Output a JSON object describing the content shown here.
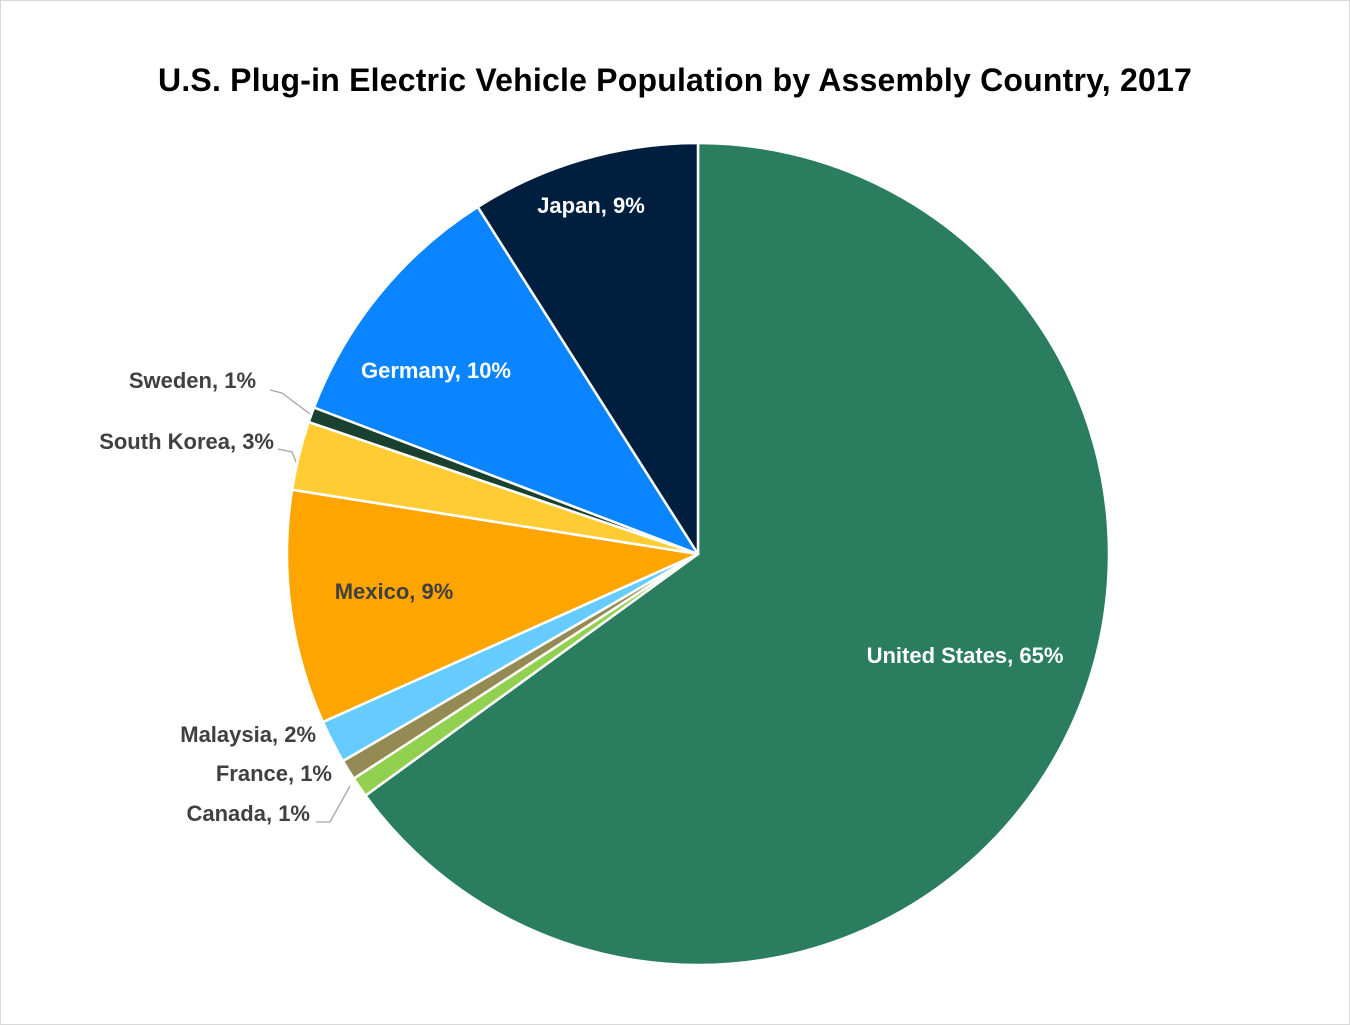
{
  "chart_data": {
    "type": "pie",
    "title": "U.S. Plug-in Electric Vehicle Population by Assembly Country, 2017",
    "slices": [
      {
        "label": "United States, 65%",
        "value": 65,
        "color": "#2a7d5f"
      },
      {
        "label": "Canada, 1%",
        "value": 0.8,
        "color": "#92d050"
      },
      {
        "label": "France, 1%",
        "value": 0.8,
        "color": "#948a54"
      },
      {
        "label": "Malaysia, 2%",
        "value": 1.7,
        "color": "#66ccff"
      },
      {
        "label": "Mexico, 9%",
        "value": 9.2,
        "color": "#ffa500"
      },
      {
        "label": "South Korea, 3%",
        "value": 2.7,
        "color": "#ffcc33"
      },
      {
        "label": "Sweden, 1%",
        "value": 0.6,
        "color": "#1a4030"
      },
      {
        "label": "Germany, 10%",
        "value": 10.2,
        "color": "#0a84ff"
      },
      {
        "label": "Japan, 9%",
        "value": 9.0,
        "color": "#001f3f"
      }
    ],
    "label_colors": {
      "inside_light": "#ffffff",
      "inside_dark": "#404040",
      "outside": "#404040",
      "leader": "#a6a6a6"
    },
    "legend": "none"
  }
}
